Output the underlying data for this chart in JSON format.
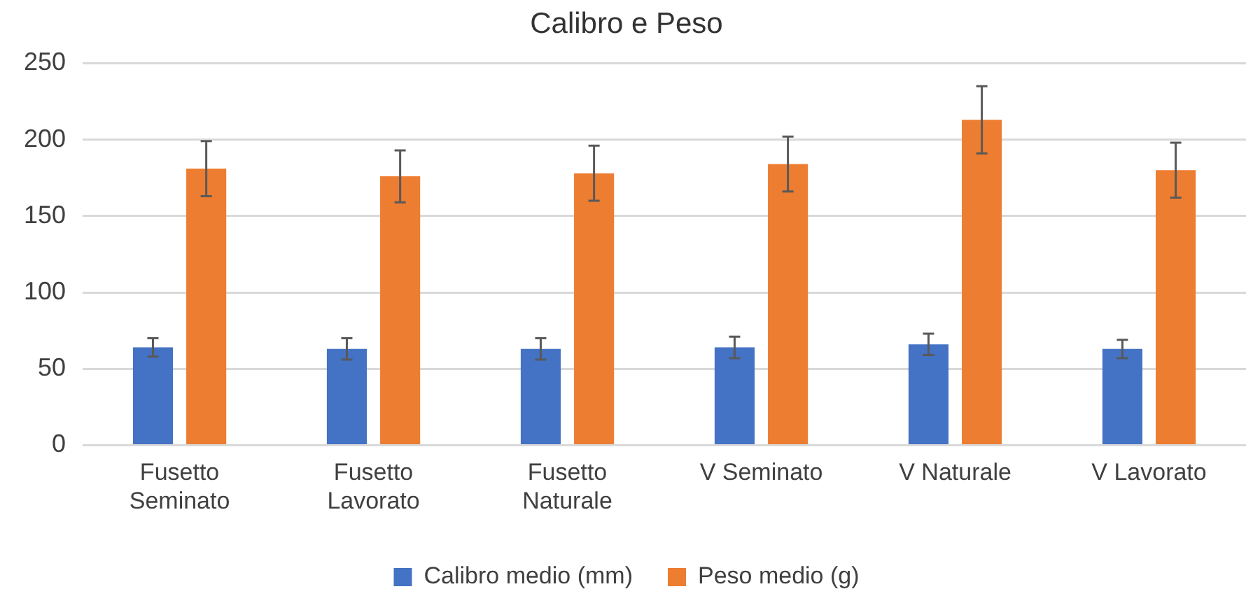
{
  "chart_data": {
    "type": "bar",
    "title": "Calibro e Peso",
    "categories": [
      "Fusetto Seminato",
      "Fusetto Lavorato",
      "Fusetto Naturale",
      "V Seminato",
      "V Naturale",
      "V Lavorato"
    ],
    "series": [
      {
        "name": "Calibro medio (mm)",
        "color": "#4472c4",
        "values": [
          64,
          63,
          63,
          64,
          66,
          63
        ],
        "errors": [
          6,
          7,
          7,
          7,
          7,
          6
        ]
      },
      {
        "name": "Peso medio (g)",
        "color": "#ed7d31",
        "values": [
          181,
          176,
          178,
          184,
          213,
          180
        ],
        "errors": [
          18,
          17,
          18,
          18,
          22,
          18
        ]
      }
    ],
    "ylim": [
      0,
      250
    ],
    "yticks": [
      0,
      50,
      100,
      150,
      200,
      250
    ],
    "grid": "y",
    "legend": "bottom"
  }
}
